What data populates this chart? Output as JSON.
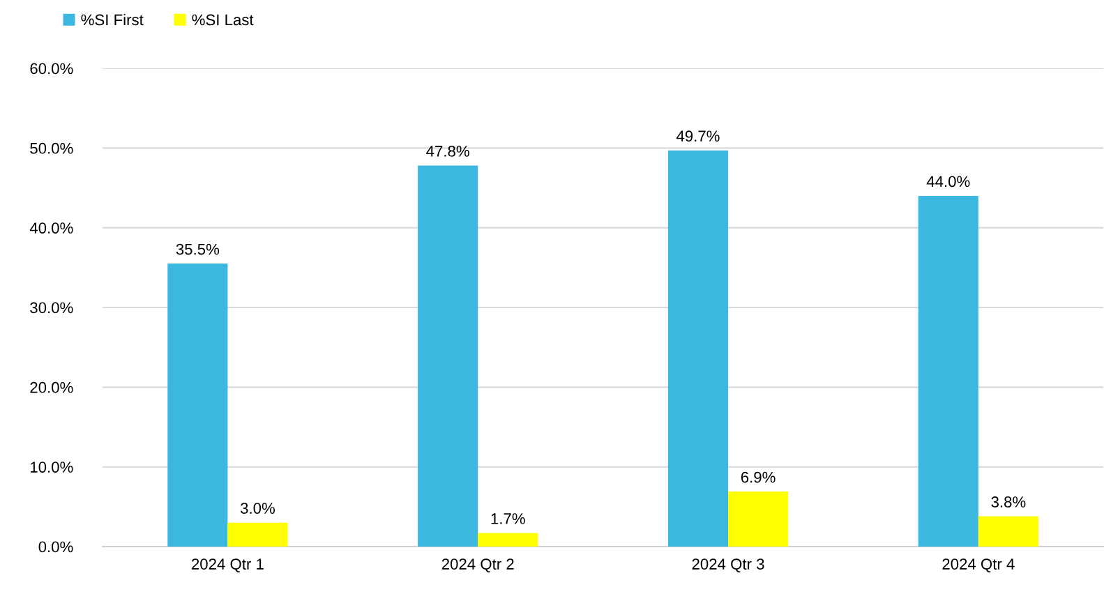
{
  "chart_data": {
    "type": "bar",
    "categories": [
      "2024 Qtr 1",
      "2024 Qtr 2",
      "2024 Qtr 3",
      "2024 Qtr 4"
    ],
    "series": [
      {
        "name": "%SI First",
        "color": "#3cb8e0",
        "values": [
          35.5,
          47.8,
          49.7,
          44.0
        ],
        "value_labels": [
          "35.5%",
          "47.8%",
          "49.7%",
          "44.0%"
        ]
      },
      {
        "name": "%SI Last",
        "color": "#ffff00",
        "values": [
          3.0,
          1.7,
          6.9,
          3.8
        ],
        "value_labels": [
          "3.0%",
          "1.7%",
          "6.9%",
          "3.8%"
        ]
      }
    ],
    "ylim": [
      0,
      60
    ],
    "yticks": [
      {
        "value": 0,
        "label": "0.0%"
      },
      {
        "value": 10,
        "label": "10.0%"
      },
      {
        "value": 20,
        "label": "20.0%"
      },
      {
        "value": 30,
        "label": "30.0%"
      },
      {
        "value": 40,
        "label": "40.0%"
      },
      {
        "value": 50,
        "label": "50.0%"
      },
      {
        "value": 60,
        "label": "60.0%"
      }
    ],
    "grid": "y",
    "legend": "top left"
  }
}
